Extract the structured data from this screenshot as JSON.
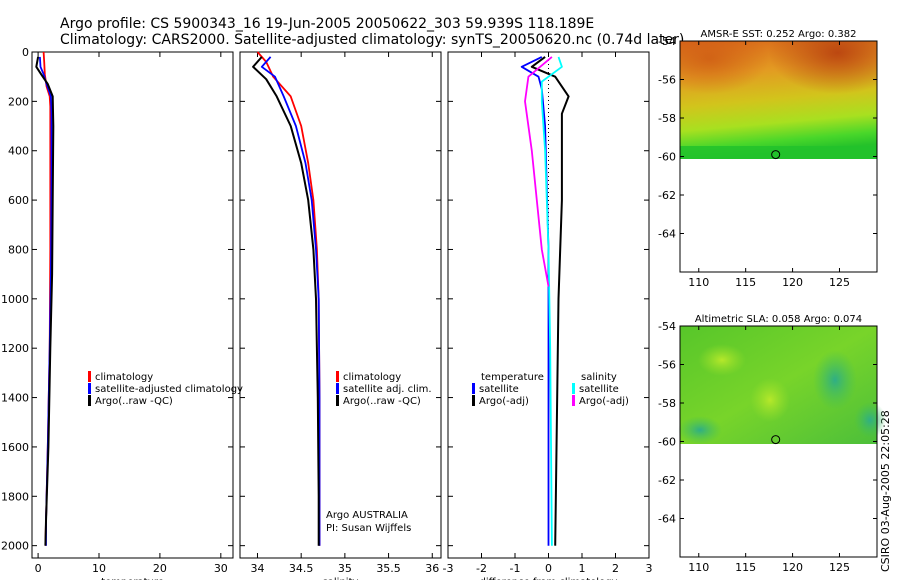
{
  "header": {
    "line1": "Argo profile: CS 5900343_16 19-Jun-2005 20050622_303 59.939S 118.189E",
    "line2": "Climatology: CARS2000. Satellite-adjusted climatology: synTS_20050620.nc (0.74d later)"
  },
  "side_credit": "CSIRO 03-Aug-2005 22:05:28",
  "colors": {
    "red": "#ff0000",
    "blue": "#0000ff",
    "black": "#000000",
    "cyan": "#00ffff",
    "magenta": "#ff00ff"
  },
  "chart_data": [
    {
      "id": "temperature",
      "type": "line",
      "xlabel": "temperature",
      "xlim": [
        -1,
        32
      ],
      "ylim": [
        2050,
        0
      ],
      "xticks": [
        0,
        10,
        20,
        30
      ],
      "yticks": [
        0,
        200,
        400,
        600,
        800,
        1000,
        1200,
        1400,
        1600,
        1800,
        2000
      ],
      "legend": [
        "climatology",
        "satellite-adjusted climatology",
        "Argo(..raw -QC)"
      ],
      "series": [
        {
          "name": "climatology",
          "color": "red",
          "points": [
            [
              0.9,
              0
            ],
            [
              1.0,
              40
            ],
            [
              1.1,
              90
            ],
            [
              1.4,
              140
            ],
            [
              1.9,
              180
            ],
            [
              2.0,
              220
            ],
            [
              2.0,
              400
            ],
            [
              2.0,
              800
            ],
            [
              1.9,
              1200
            ],
            [
              1.6,
              1600
            ],
            [
              1.3,
              1900
            ],
            [
              1.2,
              2000
            ]
          ]
        },
        {
          "name": "satellite-adjusted climatology",
          "color": "blue",
          "points": [
            [
              0.3,
              20
            ],
            [
              0.4,
              60
            ],
            [
              0.9,
              90
            ],
            [
              1.4,
              130
            ],
            [
              2.1,
              180
            ],
            [
              2.2,
              250
            ],
            [
              2.2,
              500
            ],
            [
              2.1,
              900
            ],
            [
              1.9,
              1200
            ],
            [
              1.6,
              1600
            ],
            [
              1.3,
              1900
            ],
            [
              1.3,
              2000
            ]
          ]
        },
        {
          "name": "Argo(..raw -QC)",
          "color": "black",
          "points": [
            [
              0.0,
              20
            ],
            [
              -0.3,
              60
            ],
            [
              0.5,
              90
            ],
            [
              1.6,
              130
            ],
            [
              2.4,
              180
            ],
            [
              2.5,
              300
            ],
            [
              2.4,
              600
            ],
            [
              2.3,
              900
            ],
            [
              2.0,
              1200
            ],
            [
              1.7,
              1600
            ],
            [
              1.3,
              1900
            ],
            [
              1.2,
              2000
            ]
          ]
        }
      ]
    },
    {
      "id": "salinity",
      "type": "line",
      "xlabel": "salinity",
      "xlim": [
        33.8,
        36.1
      ],
      "ylim": [
        2050,
        0
      ],
      "xticks": [
        34,
        34.5,
        35,
        35.5,
        36
      ],
      "legend": [
        "climatology",
        "satellite adj. clim.",
        "Argo(..raw -QC)"
      ],
      "annotation": [
        "Argo AUSTRALIA",
        "PI: Susan Wijffels"
      ],
      "series": [
        {
          "name": "climatology",
          "color": "red",
          "points": [
            [
              34.0,
              0
            ],
            [
              34.1,
              40
            ],
            [
              34.18,
              100
            ],
            [
              34.38,
              180
            ],
            [
              34.5,
              300
            ],
            [
              34.58,
              450
            ],
            [
              34.64,
              600
            ],
            [
              34.68,
              800
            ],
            [
              34.7,
              1000
            ],
            [
              34.71,
              1400
            ],
            [
              34.71,
              1800
            ],
            [
              34.71,
              2000
            ]
          ]
        },
        {
          "name": "satellite adj. clim.",
          "color": "blue",
          "points": [
            [
              34.15,
              20
            ],
            [
              34.05,
              60
            ],
            [
              34.2,
              100
            ],
            [
              34.3,
              180
            ],
            [
              34.44,
              300
            ],
            [
              34.55,
              450
            ],
            [
              34.62,
              600
            ],
            [
              34.67,
              800
            ],
            [
              34.7,
              1000
            ],
            [
              34.71,
              1400
            ],
            [
              34.71,
              1800
            ],
            [
              34.71,
              2000
            ]
          ]
        },
        {
          "name": "Argo(..raw -QC)",
          "color": "black",
          "points": [
            [
              34.05,
              20
            ],
            [
              33.95,
              60
            ],
            [
              34.1,
              110
            ],
            [
              34.22,
              180
            ],
            [
              34.38,
              300
            ],
            [
              34.5,
              450
            ],
            [
              34.58,
              600
            ],
            [
              34.64,
              800
            ],
            [
              34.67,
              1000
            ],
            [
              34.69,
              1400
            ],
            [
              34.7,
              1800
            ],
            [
              34.7,
              2000
            ]
          ]
        }
      ]
    },
    {
      "id": "difference",
      "type": "line",
      "xlabel": "difference from climatology",
      "xlim": [
        -3,
        3
      ],
      "ylim": [
        2050,
        0
      ],
      "xticks": [
        -3,
        -2,
        -1,
        0,
        1,
        2,
        3
      ],
      "legend_left": [
        "temperature",
        "satellite",
        "Argo(-adj)"
      ],
      "legend_right": [
        "salinity",
        "satellite",
        "Argo(-adj)"
      ],
      "series": [
        {
          "name": "temperature satellite",
          "color": "blue",
          "points": [
            [
              -0.2,
              20
            ],
            [
              -0.8,
              60
            ],
            [
              -0.3,
              100
            ],
            [
              -0.2,
              150
            ],
            [
              -0.1,
              300
            ],
            [
              0,
              800
            ],
            [
              0,
              1200
            ],
            [
              0,
              2000
            ]
          ]
        },
        {
          "name": "temperature Argo(-adj)",
          "color": "black",
          "points": [
            [
              -0.1,
              20
            ],
            [
              -0.5,
              60
            ],
            [
              0.2,
              100
            ],
            [
              0.6,
              180
            ],
            [
              0.4,
              250
            ],
            [
              0.4,
              600
            ],
            [
              0.3,
              1000
            ],
            [
              0.2,
              2000
            ]
          ]
        },
        {
          "name": "salinity satellite",
          "color": "cyan",
          "points": [
            [
              0.3,
              20
            ],
            [
              0.4,
              60
            ],
            [
              -0.2,
              120
            ],
            [
              -0.2,
              200
            ],
            [
              -0.1,
              400
            ],
            [
              0,
              800
            ],
            [
              0.05,
              1200
            ],
            [
              0.1,
              2000
            ]
          ]
        },
        {
          "name": "salinity Argo(-adj)",
          "color": "magenta",
          "points": [
            [
              0.1,
              20
            ],
            [
              -0.6,
              100
            ],
            [
              -0.7,
              200
            ],
            [
              -0.5,
              400
            ],
            [
              -0.2,
              800
            ],
            [
              0,
              950
            ]
          ]
        }
      ]
    },
    {
      "id": "amsre_sst",
      "type": "heatmap",
      "title": "AMSR-E SST: 0.252 Argo: 0.382",
      "xlim": [
        108,
        129
      ],
      "ylim": [
        -66,
        -54
      ],
      "xticks": [
        110,
        115,
        120,
        125
      ],
      "yticks": [
        -54,
        -56,
        -58,
        -60,
        -62,
        -64
      ],
      "data_ylim": [
        -60,
        -54
      ],
      "marker": {
        "lon": 118.2,
        "lat": -59.9
      }
    },
    {
      "id": "altimetric_sla",
      "type": "heatmap",
      "title": "Altimetric SLA: 0.058 Argo: 0.074",
      "xlim": [
        108,
        129
      ],
      "ylim": [
        -66,
        -54
      ],
      "xticks": [
        110,
        115,
        120,
        125
      ],
      "yticks": [
        -54,
        -56,
        -58,
        -60,
        -62,
        -64
      ],
      "data_ylim": [
        -60,
        -54
      ],
      "marker": {
        "lon": 118.2,
        "lat": -59.9
      }
    }
  ]
}
